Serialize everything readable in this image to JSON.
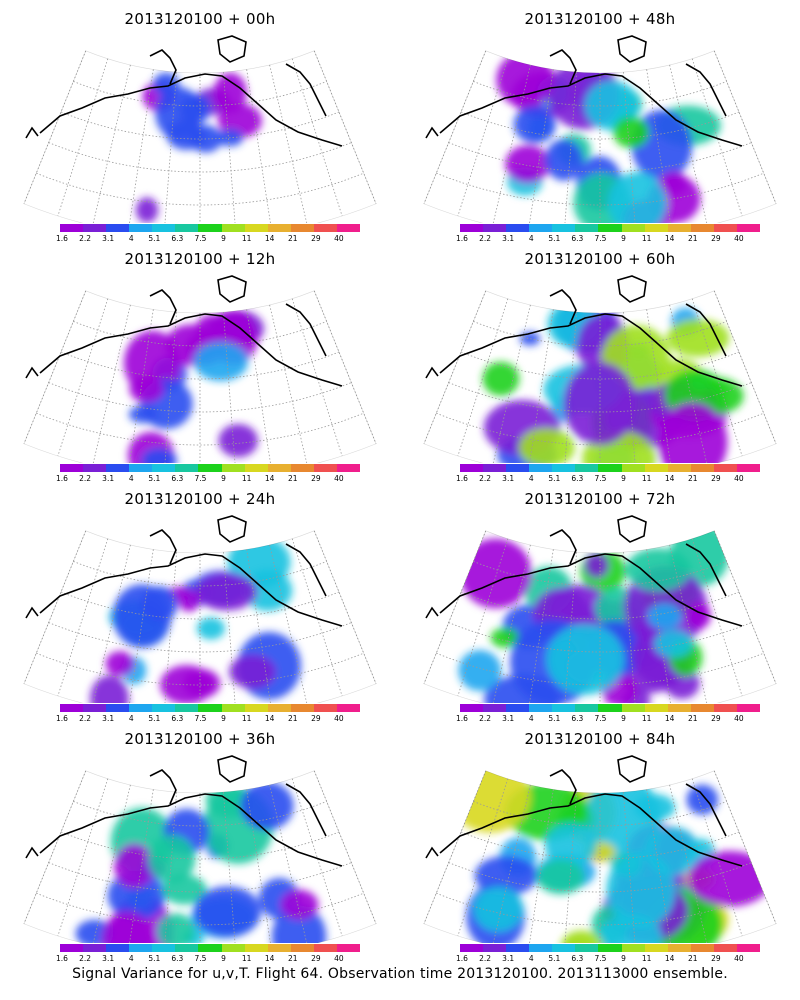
{
  "panels": [
    {
      "title": "2013120100 + 00h",
      "intensity": 0.1
    },
    {
      "title": "2013120100 + 48h",
      "intensity": 0.55
    },
    {
      "title": "2013120100 + 12h",
      "intensity": 0.2
    },
    {
      "title": "2013120100 + 60h",
      "intensity": 0.65
    },
    {
      "title": "2013120100 + 24h",
      "intensity": 0.35
    },
    {
      "title": "2013120100 + 72h",
      "intensity": 0.75
    },
    {
      "title": "2013120100 + 36h",
      "intensity": 0.45
    },
    {
      "title": "2013120100 + 84h",
      "intensity": 0.85
    }
  ],
  "colorbar": {
    "colors": [
      "#9d00d8",
      "#7a1fd6",
      "#2a4cf0",
      "#1ea6f0",
      "#18c2e0",
      "#18c8a0",
      "#1cd21c",
      "#a0e020",
      "#d8d820",
      "#e8b030",
      "#e88830",
      "#f05050",
      "#f01e8c"
    ],
    "labels": [
      "1.6",
      "2.2",
      "3.1",
      "4",
      "5.1",
      "6.3",
      "7.5",
      "9",
      "11",
      "14",
      "21",
      "29",
      "40"
    ]
  },
  "footer": "Signal Variance for u,v,T. Flight 64. Observation time 2013120100. 2013113000 ensemble."
}
